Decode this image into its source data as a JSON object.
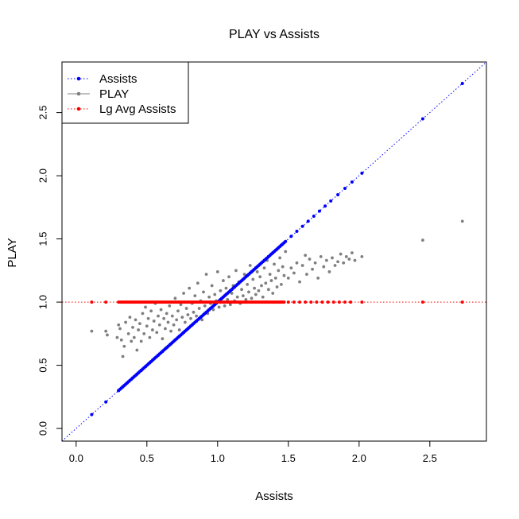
{
  "chart_data": {
    "type": "scatter",
    "title": "PLAY vs Assists",
    "xlabel": "Assists",
    "ylabel": "PLAY",
    "xlim": [
      -0.1,
      2.9
    ],
    "ylim": [
      -0.1,
      2.9
    ],
    "xticks": [
      "0.0",
      "0.5",
      "1.0",
      "1.5",
      "2.0",
      "2.5"
    ],
    "yticks": [
      "0.0",
      "0.5",
      "1.0",
      "1.5",
      "2.0",
      "2.5"
    ],
    "grid": false,
    "legend_position": "top-left",
    "reference_lines": [
      {
        "kind": "diagonal",
        "slope": 1,
        "intercept": 0,
        "color": "#0000ff",
        "style": "dotted"
      },
      {
        "kind": "horizontal",
        "y": 1.0,
        "color": "#ff0000",
        "style": "dotted"
      }
    ],
    "series": [
      {
        "name": "Assists",
        "color": "#0000ff",
        "marker": "point",
        "line": "dotted",
        "relation": "y equals x",
        "x": [
          0.11,
          0.21,
          0.3,
          0.33,
          0.36,
          0.4,
          0.43,
          0.46,
          0.49,
          0.52,
          0.55,
          0.58,
          0.61,
          0.64,
          0.67,
          0.7,
          0.73,
          0.76,
          0.79,
          0.82,
          0.85,
          0.88,
          0.91,
          0.94,
          0.97,
          1.0,
          1.03,
          1.06,
          1.09,
          1.12,
          1.15,
          1.18,
          1.21,
          1.24,
          1.27,
          1.3,
          1.33,
          1.36,
          1.39,
          1.42,
          1.45,
          1.48,
          1.52,
          1.56,
          1.6,
          1.64,
          1.68,
          1.72,
          1.76,
          1.8,
          1.85,
          1.9,
          1.95,
          2.02,
          2.45,
          2.73
        ]
      },
      {
        "name": "PLAY",
        "color": "#7f7f7f",
        "marker": "point",
        "points": [
          [
            0.11,
            0.77
          ],
          [
            0.21,
            0.77
          ],
          [
            0.22,
            0.74
          ],
          [
            0.29,
            0.72
          ],
          [
            0.3,
            0.82
          ],
          [
            0.31,
            0.79
          ],
          [
            0.32,
            0.7
          ],
          [
            0.33,
            0.57
          ],
          [
            0.34,
            0.65
          ],
          [
            0.35,
            0.84
          ],
          [
            0.37,
            0.75
          ],
          [
            0.38,
            0.88
          ],
          [
            0.39,
            0.69
          ],
          [
            0.4,
            0.8
          ],
          [
            0.41,
            0.72
          ],
          [
            0.42,
            0.86
          ],
          [
            0.43,
            0.62
          ],
          [
            0.44,
            0.78
          ],
          [
            0.45,
            0.83
          ],
          [
            0.46,
            0.69
          ],
          [
            0.47,
            0.91
          ],
          [
            0.48,
            0.75
          ],
          [
            0.49,
            0.96
          ],
          [
            0.5,
            0.81
          ],
          [
            0.51,
            0.87
          ],
          [
            0.52,
            0.72
          ],
          [
            0.53,
            0.93
          ],
          [
            0.54,
            0.78
          ],
          [
            0.55,
            0.85
          ],
          [
            0.56,
            0.99
          ],
          [
            0.57,
            0.76
          ],
          [
            0.58,
            0.89
          ],
          [
            0.59,
            0.82
          ],
          [
            0.6,
            0.94
          ],
          [
            0.61,
            0.71
          ],
          [
            0.62,
            0.87
          ],
          [
            0.63,
            0.79
          ],
          [
            0.64,
            0.91
          ],
          [
            0.65,
            0.84
          ],
          [
            0.66,
            0.97
          ],
          [
            0.67,
            0.77
          ],
          [
            0.68,
            0.89
          ],
          [
            0.69,
            0.82
          ],
          [
            0.7,
            1.03
          ],
          [
            0.71,
            0.86
          ],
          [
            0.72,
            0.93
          ],
          [
            0.73,
            0.78
          ],
          [
            0.74,
            0.98
          ],
          [
            0.75,
            0.88
          ],
          [
            0.76,
            1.07
          ],
          [
            0.77,
            0.84
          ],
          [
            0.78,
            0.95
          ],
          [
            0.79,
            0.9
          ],
          [
            0.8,
            1.11
          ],
          [
            0.81,
            0.87
          ],
          [
            0.82,
            0.99
          ],
          [
            0.83,
            0.92
          ],
          [
            0.84,
            1.05
          ],
          [
            0.85,
            0.89
          ],
          [
            0.86,
            1.15
          ],
          [
            0.87,
            0.95
          ],
          [
            0.88,
            1.01
          ],
          [
            0.89,
            0.86
          ],
          [
            0.9,
            1.08
          ],
          [
            0.91,
            0.97
          ],
          [
            0.92,
            1.22
          ],
          [
            0.93,
            0.91
          ],
          [
            0.94,
            1.04
          ],
          [
            0.95,
            0.99
          ],
          [
            0.96,
            1.13
          ],
          [
            0.97,
            0.94
          ],
          [
            0.98,
            1.06
          ],
          [
            0.99,
            1.01
          ],
          [
            1.0,
            1.24
          ],
          [
            1.01,
            0.96
          ],
          [
            1.02,
            1.09
          ],
          [
            1.03,
            1.03
          ],
          [
            1.04,
            1.17
          ],
          [
            1.05,
            0.97
          ],
          [
            1.06,
            1.11
          ],
          [
            1.07,
            1.02
          ],
          [
            1.08,
            1.2
          ],
          [
            1.09,
            0.98
          ],
          [
            1.1,
            1.07
          ],
          [
            1.11,
            1.13
          ],
          [
            1.12,
            1.01
          ],
          [
            1.13,
            1.25
          ],
          [
            1.14,
            1.04
          ],
          [
            1.15,
            1.16
          ],
          [
            1.16,
            0.99
          ],
          [
            1.17,
            1.1
          ],
          [
            1.18,
            1.05
          ],
          [
            1.19,
            1.22
          ],
          [
            1.2,
            1.02
          ],
          [
            1.21,
            1.14
          ],
          [
            1.22,
            1.08
          ],
          [
            1.23,
            1.29
          ],
          [
            1.24,
            1.03
          ],
          [
            1.25,
            1.18
          ],
          [
            1.26,
            1.11
          ],
          [
            1.27,
            1.06
          ],
          [
            1.28,
            1.24
          ],
          [
            1.29,
            1.09
          ],
          [
            1.3,
            1.2
          ],
          [
            1.31,
            1.13
          ],
          [
            1.32,
            1.04
          ],
          [
            1.33,
            1.27
          ],
          [
            1.34,
            1.15
          ],
          [
            1.35,
            1.33
          ],
          [
            1.36,
            1.1
          ],
          [
            1.37,
            1.22
          ],
          [
            1.38,
            1.17
          ],
          [
            1.39,
            1.07
          ],
          [
            1.4,
            1.3
          ],
          [
            1.41,
            1.19
          ],
          [
            1.42,
            1.12
          ],
          [
            1.43,
            1.25
          ],
          [
            1.44,
            1.35
          ],
          [
            1.45,
            1.14
          ],
          [
            1.46,
            1.28
          ],
          [
            1.47,
            1.21
          ],
          [
            1.48,
            1.4
          ],
          [
            1.5,
            1.19
          ],
          [
            1.52,
            1.27
          ],
          [
            1.54,
            1.23
          ],
          [
            1.56,
            1.31
          ],
          [
            1.58,
            1.16
          ],
          [
            1.6,
            1.29
          ],
          [
            1.62,
            1.37
          ],
          [
            1.63,
            1.22
          ],
          [
            1.65,
            1.34
          ],
          [
            1.67,
            1.26
          ],
          [
            1.69,
            1.31
          ],
          [
            1.71,
            1.19
          ],
          [
            1.73,
            1.36
          ],
          [
            1.75,
            1.28
          ],
          [
            1.77,
            1.33
          ],
          [
            1.79,
            1.24
          ],
          [
            1.81,
            1.35
          ],
          [
            1.83,
            1.29
          ],
          [
            1.85,
            1.32
          ],
          [
            1.87,
            1.38
          ],
          [
            1.89,
            1.31
          ],
          [
            1.91,
            1.36
          ],
          [
            1.93,
            1.34
          ],
          [
            1.95,
            1.39
          ],
          [
            1.97,
            1.33
          ],
          [
            2.02,
            1.36
          ],
          [
            2.45,
            1.49
          ],
          [
            2.73,
            1.64
          ]
        ]
      },
      {
        "name": "Lg Avg Assists",
        "color": "#ff0000",
        "marker": "point",
        "line": "dotted",
        "y": 1.0,
        "x_range": [
          0.3,
          1.48
        ],
        "x_extra": [
          0.11,
          0.21,
          1.5,
          1.54,
          1.58,
          1.62,
          1.66,
          1.7,
          1.74,
          1.78,
          1.82,
          1.86,
          1.9,
          1.94,
          2.02,
          2.45,
          2.73
        ]
      }
    ]
  }
}
